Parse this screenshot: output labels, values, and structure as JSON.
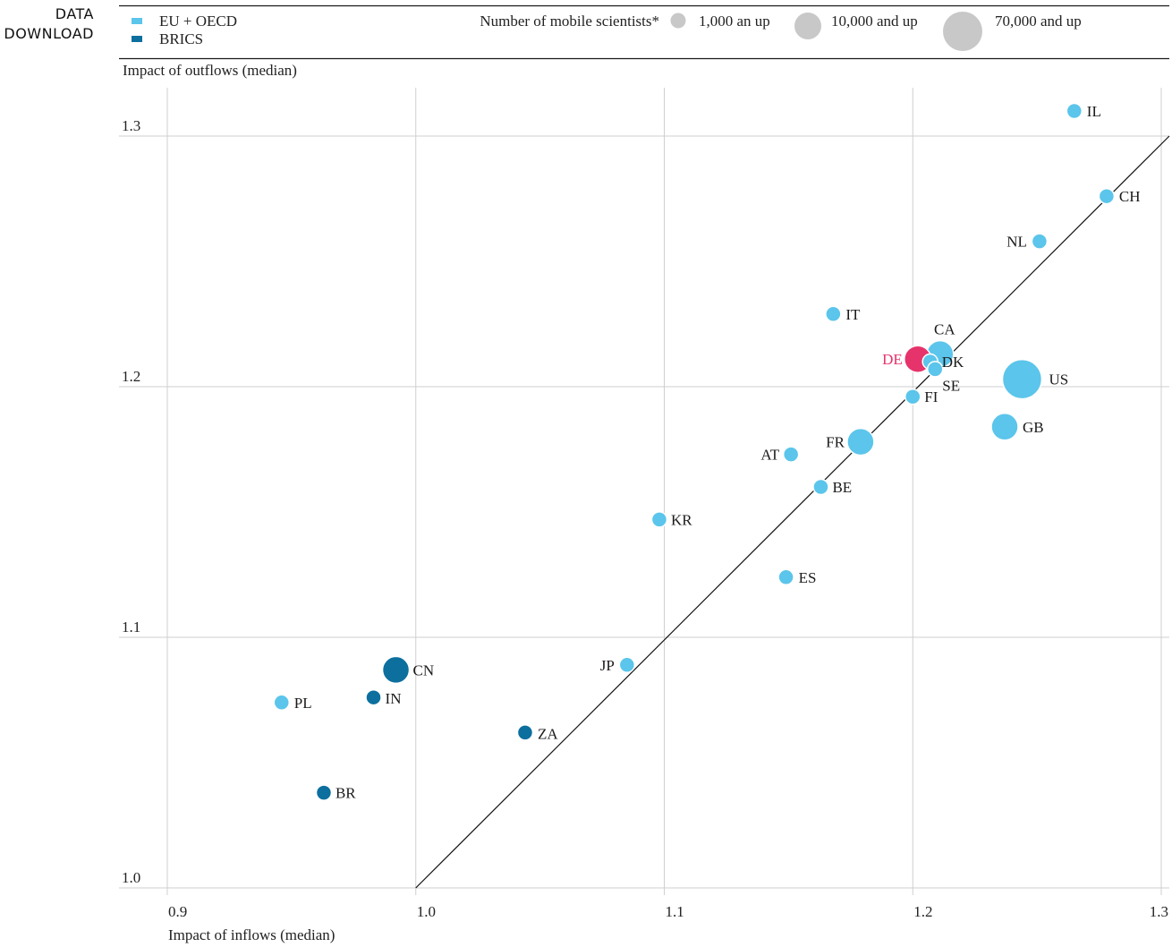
{
  "side_link": {
    "line1": "DATA",
    "line2": "DOWNLOAD"
  },
  "legend": {
    "groups": [
      {
        "label": "EU + OECD",
        "color": "#5bc5eb"
      },
      {
        "label": "BRICS",
        "color": "#0c6f9e"
      }
    ],
    "size_title": "Number of mobile scientists*",
    "sizes": [
      {
        "label": "1,000 an up"
      },
      {
        "label": "10,000 and up"
      },
      {
        "label": "70,000 and up"
      }
    ]
  },
  "chart_data": {
    "type": "scatter",
    "xlabel": "Impact of inflows (median)",
    "ylabel": "Impact of outflows (median)",
    "xlim": [
      0.9,
      1.3
    ],
    "ylim": [
      1.0,
      1.3
    ],
    "xticks": [
      "0.9",
      "1.0",
      "1.1",
      "1.2",
      "1.3"
    ],
    "yticks": [
      "1.0",
      "1.1",
      "1.2",
      "1.3"
    ],
    "grid": true,
    "diagonal_line": true,
    "highlight_color": "#e6336b",
    "points": [
      {
        "label": "IL",
        "x": 1.265,
        "y": 1.31,
        "group": "EU + OECD",
        "size": "small"
      },
      {
        "label": "CH",
        "x": 1.278,
        "y": 1.276,
        "group": "EU + OECD",
        "size": "small"
      },
      {
        "label": "NL",
        "x": 1.251,
        "y": 1.258,
        "group": "EU + OECD",
        "size": "small"
      },
      {
        "label": "IT",
        "x": 1.168,
        "y": 1.229,
        "group": "EU + OECD",
        "size": "small"
      },
      {
        "label": "CA",
        "x": 1.211,
        "y": 1.213,
        "group": "EU + OECD",
        "size": "medium"
      },
      {
        "label": "DE",
        "x": 1.202,
        "y": 1.211,
        "group": "EU + OECD",
        "size": "medium",
        "highlight": true
      },
      {
        "label": "DK",
        "x": 1.207,
        "y": 1.21,
        "group": "EU + OECD",
        "size": "small"
      },
      {
        "label": "SE",
        "x": 1.209,
        "y": 1.207,
        "group": "EU + OECD",
        "size": "small"
      },
      {
        "label": "US",
        "x": 1.244,
        "y": 1.203,
        "group": "EU + OECD",
        "size": "large"
      },
      {
        "label": "FI",
        "x": 1.2,
        "y": 1.196,
        "group": "EU + OECD",
        "size": "small"
      },
      {
        "label": "GB",
        "x": 1.237,
        "y": 1.184,
        "group": "EU + OECD",
        "size": "medium"
      },
      {
        "label": "FR",
        "x": 1.179,
        "y": 1.178,
        "group": "EU + OECD",
        "size": "medium"
      },
      {
        "label": "AT",
        "x": 1.151,
        "y": 1.173,
        "group": "EU + OECD",
        "size": "small"
      },
      {
        "label": "BE",
        "x": 1.163,
        "y": 1.16,
        "group": "EU + OECD",
        "size": "small"
      },
      {
        "label": "KR",
        "x": 1.098,
        "y": 1.147,
        "group": "EU + OECD",
        "size": "small"
      },
      {
        "label": "ES",
        "x": 1.149,
        "y": 1.124,
        "group": "EU + OECD",
        "size": "small"
      },
      {
        "label": "JP",
        "x": 1.085,
        "y": 1.089,
        "group": "EU + OECD",
        "size": "small"
      },
      {
        "label": "CN",
        "x": 0.992,
        "y": 1.087,
        "group": "BRICS",
        "size": "medium"
      },
      {
        "label": "IN",
        "x": 0.983,
        "y": 1.076,
        "group": "BRICS",
        "size": "small"
      },
      {
        "label": "PL",
        "x": 0.946,
        "y": 1.074,
        "group": "EU + OECD",
        "size": "small"
      },
      {
        "label": "ZA",
        "x": 1.044,
        "y": 1.062,
        "group": "BRICS",
        "size": "small"
      },
      {
        "label": "BR",
        "x": 0.963,
        "y": 1.038,
        "group": "BRICS",
        "size": "small"
      }
    ]
  }
}
